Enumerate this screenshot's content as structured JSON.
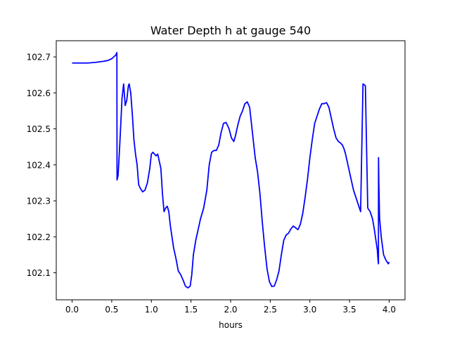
{
  "chart_data": {
    "type": "line",
    "title": "Water Depth h at gauge 540",
    "xlabel": "hours",
    "ylabel": "",
    "xlim": [
      -0.2,
      4.2
    ],
    "ylim": [
      102.025,
      102.745
    ],
    "xticks": [
      0.0,
      0.5,
      1.0,
      1.5,
      2.0,
      2.5,
      3.0,
      3.5,
      4.0
    ],
    "xtick_labels": [
      "0.0",
      "0.5",
      "1.0",
      "1.5",
      "2.0",
      "2.5",
      "3.0",
      "3.5",
      "4.0"
    ],
    "yticks": [
      102.1,
      102.2,
      102.3,
      102.4,
      102.5,
      102.6,
      102.7
    ],
    "ytick_labels": [
      "102.1",
      "102.2",
      "102.3",
      "102.4",
      "102.5",
      "102.6",
      "102.7"
    ],
    "grid": false,
    "legend": "none",
    "series": [
      {
        "color": "#0000ff",
        "x": [
          0.0,
          0.2,
          0.3,
          0.4,
          0.45,
          0.5,
          0.55,
          0.565,
          0.567,
          0.58,
          0.6,
          0.63,
          0.65,
          0.67,
          0.69,
          0.71,
          0.72,
          0.74,
          0.76,
          0.78,
          0.8,
          0.82,
          0.84,
          0.86,
          0.89,
          0.92,
          0.95,
          0.98,
          1.0,
          1.02,
          1.04,
          1.06,
          1.08,
          1.1,
          1.12,
          1.14,
          1.16,
          1.18,
          1.2,
          1.22,
          1.24,
          1.26,
          1.28,
          1.31,
          1.34,
          1.37,
          1.4,
          1.43,
          1.46,
          1.49,
          1.51,
          1.53,
          1.56,
          1.59,
          1.62,
          1.66,
          1.7,
          1.73,
          1.76,
          1.79,
          1.82,
          1.85,
          1.88,
          1.91,
          1.94,
          1.96,
          1.98,
          2.01,
          2.04,
          2.06,
          2.09,
          2.12,
          2.15,
          2.18,
          2.21,
          2.24,
          2.27,
          2.29,
          2.31,
          2.34,
          2.37,
          2.4,
          2.43,
          2.46,
          2.49,
          2.52,
          2.55,
          2.58,
          2.61,
          2.64,
          2.67,
          2.7,
          2.73,
          2.76,
          2.79,
          2.82,
          2.85,
          2.88,
          2.91,
          2.94,
          2.97,
          3.0,
          3.03,
          3.06,
          3.09,
          3.12,
          3.15,
          3.18,
          3.21,
          3.24,
          3.27,
          3.3,
          3.33,
          3.36,
          3.39,
          3.41,
          3.43,
          3.45,
          3.47,
          3.49,
          3.52,
          3.55,
          3.58,
          3.61,
          3.64,
          3.67,
          3.7,
          3.73,
          3.76,
          3.79,
          3.81,
          3.83,
          3.85,
          3.86,
          3.865,
          3.866,
          3.87,
          3.875,
          3.877,
          3.88,
          3.9,
          3.93,
          3.96,
          3.99,
          4.0
        ],
        "y": [
          102.683,
          102.683,
          102.685,
          102.688,
          102.69,
          102.695,
          102.705,
          102.712,
          102.358,
          102.37,
          102.45,
          102.585,
          102.625,
          102.565,
          102.58,
          102.62,
          102.625,
          102.6,
          102.54,
          102.47,
          102.43,
          102.4,
          102.345,
          102.335,
          102.325,
          102.33,
          102.35,
          102.39,
          102.43,
          102.435,
          102.43,
          102.425,
          102.43,
          102.41,
          102.39,
          102.32,
          102.27,
          102.28,
          102.285,
          102.27,
          102.23,
          102.2,
          102.17,
          102.14,
          102.105,
          102.095,
          102.08,
          102.063,
          102.058,
          102.063,
          102.095,
          102.15,
          102.19,
          102.22,
          102.25,
          102.28,
          102.33,
          102.4,
          102.435,
          102.44,
          102.44,
          102.455,
          102.49,
          102.515,
          102.518,
          102.51,
          102.5,
          102.475,
          102.465,
          102.48,
          102.51,
          102.535,
          102.55,
          102.57,
          102.575,
          102.56,
          102.5,
          102.46,
          102.42,
          102.38,
          102.32,
          102.24,
          102.17,
          102.11,
          102.075,
          102.062,
          102.063,
          102.08,
          102.105,
          102.15,
          102.19,
          102.205,
          102.21,
          102.222,
          102.23,
          102.225,
          102.22,
          102.235,
          102.265,
          102.31,
          102.36,
          102.42,
          102.47,
          102.515,
          102.535,
          102.555,
          102.57,
          102.57,
          102.573,
          102.56,
          102.53,
          102.5,
          102.475,
          102.465,
          102.46,
          102.455,
          102.445,
          102.43,
          102.41,
          102.39,
          102.36,
          102.33,
          102.31,
          102.29,
          102.27,
          102.625,
          102.62,
          102.28,
          102.27,
          102.25,
          102.225,
          102.195,
          102.165,
          102.135,
          102.125,
          102.42,
          102.35,
          102.3,
          102.27,
          102.25,
          102.2,
          102.15,
          102.135,
          102.125,
          102.13
        ]
      }
    ]
  }
}
